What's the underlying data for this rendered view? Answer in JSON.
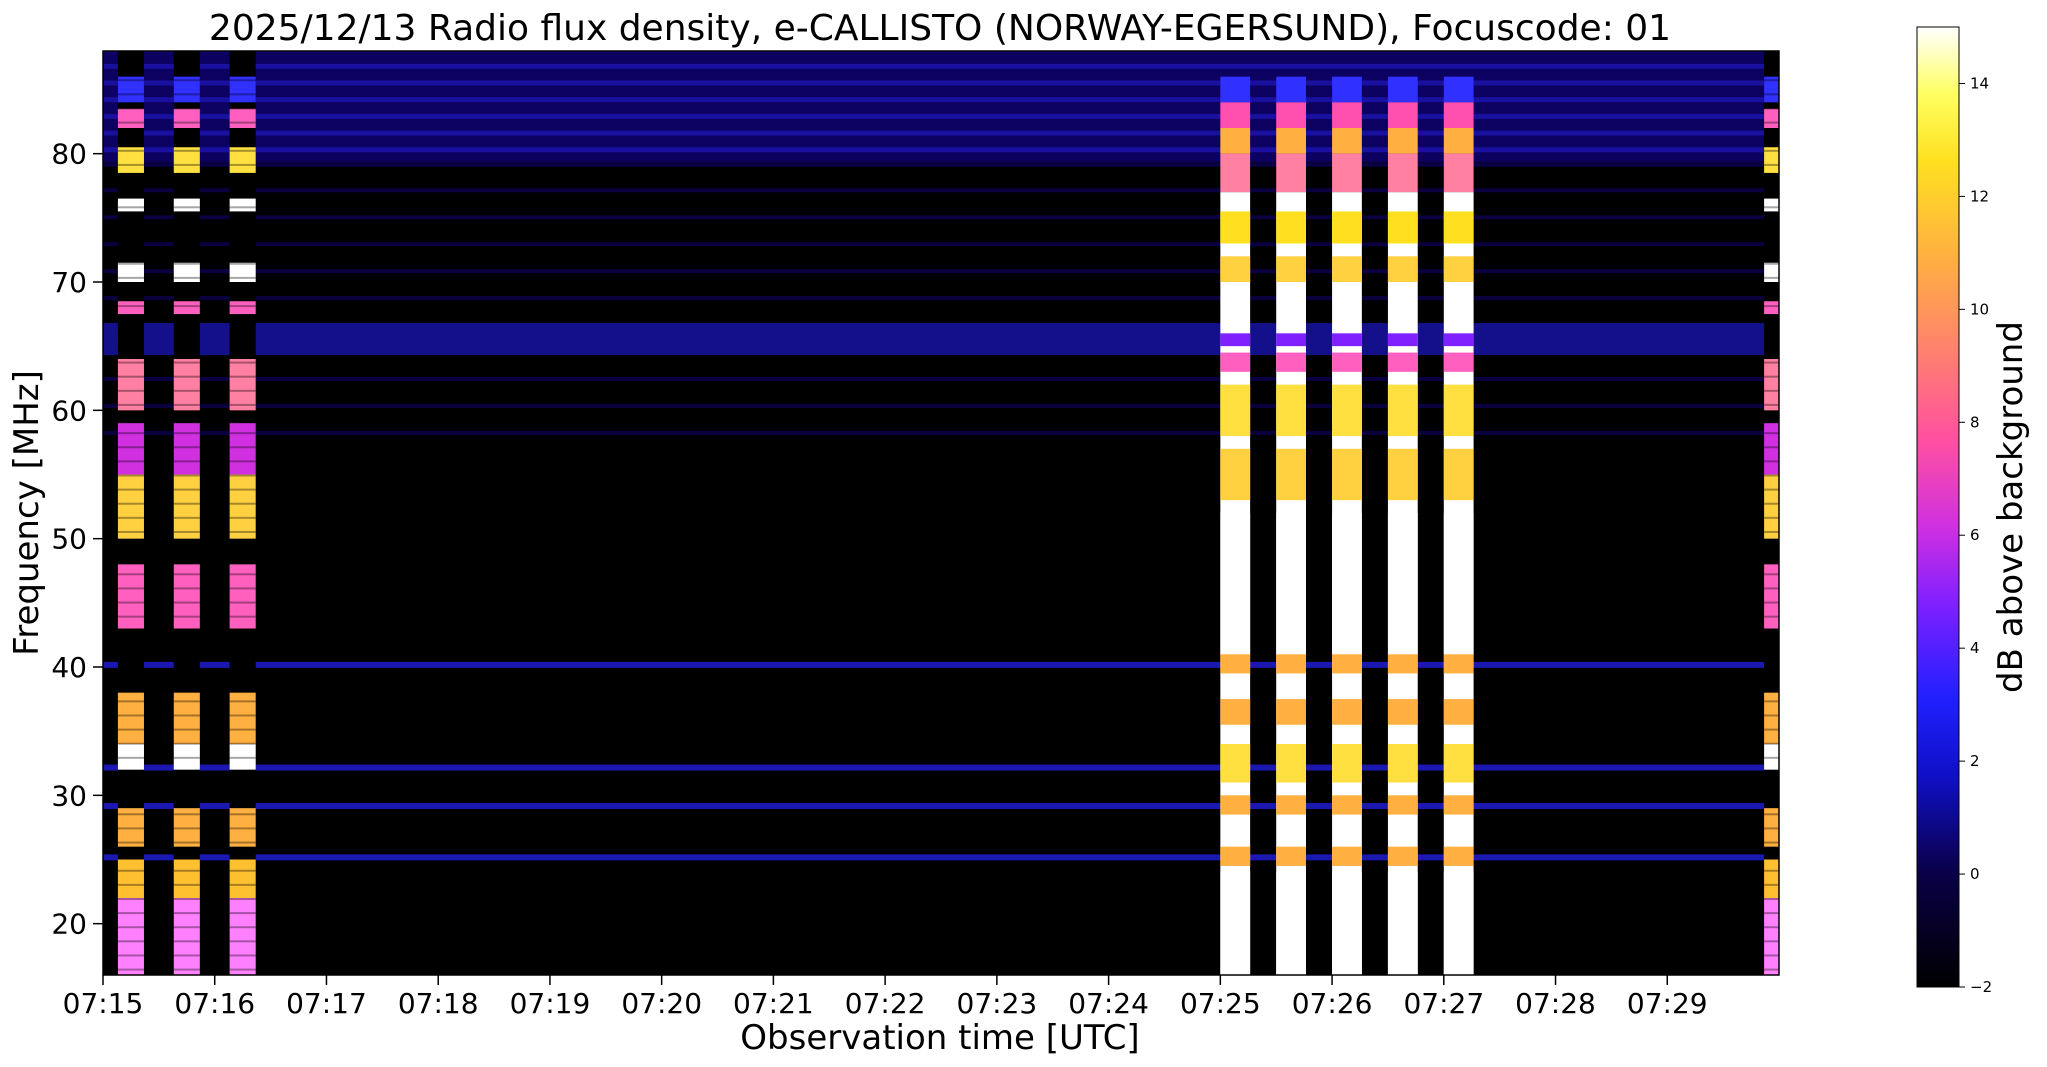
{
  "chart_data": {
    "type": "heatmap",
    "title": "2025/12/13  Radio flux density, e-CALLISTO (NORWAY-EGERSUND), Focuscode: 01",
    "xlabel": "Observation time [UTC]",
    "ylabel": "Frequency [MHz]",
    "x_ticks": [
      "07:15",
      "07:16",
      "07:17",
      "07:18",
      "07:19",
      "07:20",
      "07:21",
      "07:22",
      "07:23",
      "07:24",
      "07:25",
      "07:26",
      "07:27",
      "07:28",
      "07:29"
    ],
    "x_range_minutes": [
      0,
      15
    ],
    "xlim": [
      "07:15",
      "07:30"
    ],
    "y_ticks": [
      20,
      30,
      40,
      50,
      60,
      70,
      80
    ],
    "ylim": [
      16,
      88
    ],
    "colorbar": {
      "label": "dB above background",
      "ticks": [
        -2,
        0,
        2,
        4,
        6,
        8,
        10,
        12,
        14
      ],
      "range": [
        -2,
        15
      ],
      "colormap": "gnuplot2"
    },
    "bursts": [
      {
        "start": "07:15:08",
        "end": "07:15:22",
        "level": "high"
      },
      {
        "start": "07:15:38",
        "end": "07:15:52",
        "level": "high"
      },
      {
        "start": "07:16:08",
        "end": "07:16:22",
        "level": "high"
      },
      {
        "start": "07:25:00",
        "end": "07:25:16",
        "level": "saturated"
      },
      {
        "start": "07:25:30",
        "end": "07:25:46",
        "level": "saturated"
      },
      {
        "start": "07:26:00",
        "end": "07:26:16",
        "level": "saturated"
      },
      {
        "start": "07:26:30",
        "end": "07:26:46",
        "level": "saturated"
      },
      {
        "start": "07:27:00",
        "end": "07:27:16",
        "level": "saturated"
      },
      {
        "start": "07:29:52",
        "end": "07:30:00",
        "level": "high"
      }
    ],
    "background_bands_mhz": [
      65,
      40,
      32,
      29,
      25
    ]
  }
}
